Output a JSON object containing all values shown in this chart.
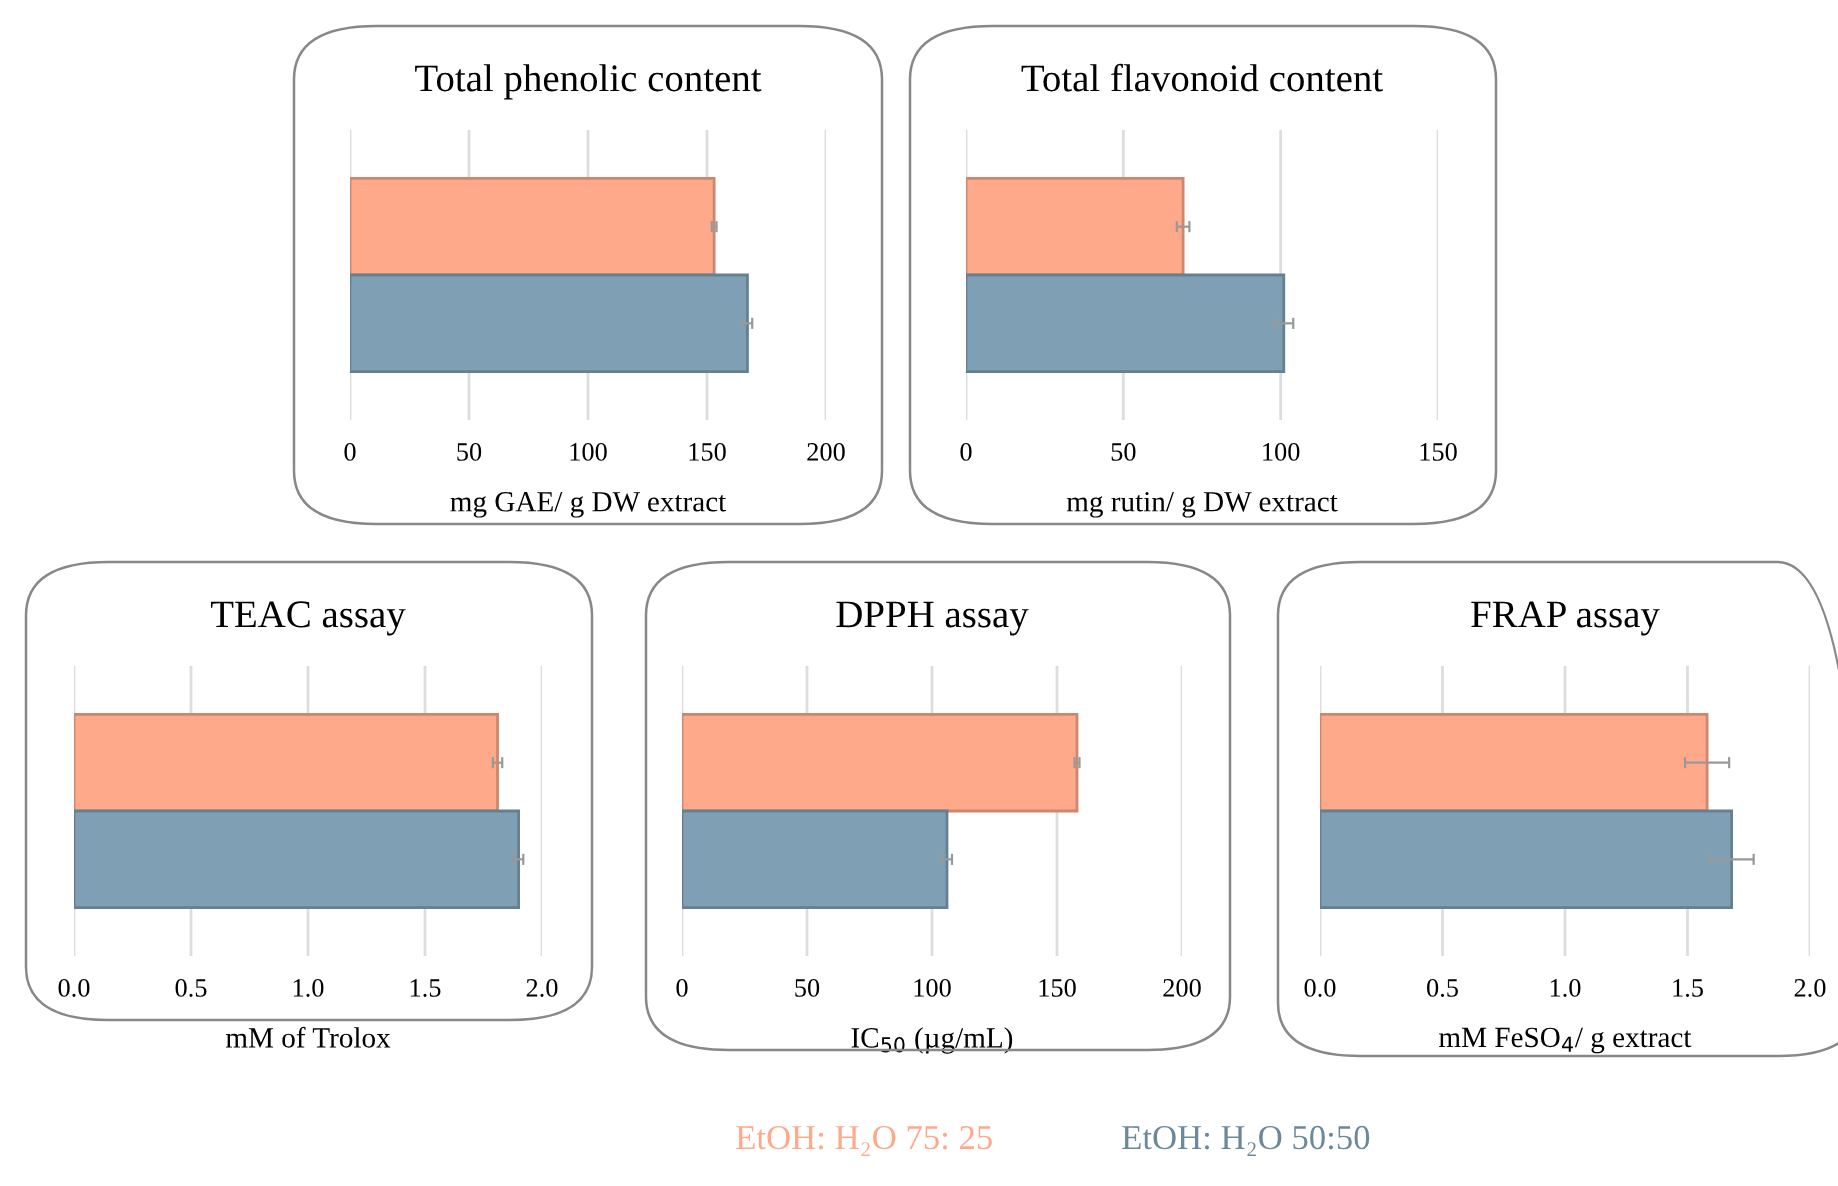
{
  "chart_data": [
    {
      "type": "bar",
      "orientation": "horizontal",
      "title": "Total phenolic content",
      "xlabel": "mg GAE/ g DW extract",
      "categories": [
        null
      ],
      "xlim": [
        0,
        200
      ],
      "xticks": [
        0,
        50,
        100,
        150,
        200
      ],
      "grid": "x",
      "legend": "bottom",
      "series": [
        {
          "name": "EtOH: H₂O 75: 25",
          "color": "#ffa98b",
          "values": [
            153
          ],
          "errors": [
            1
          ]
        },
        {
          "name": "EtOH: H₂O 50:50",
          "color": "#7fa0b4",
          "values": [
            167
          ],
          "errors": [
            2
          ]
        }
      ]
    },
    {
      "type": "bar",
      "orientation": "horizontal",
      "title": "Total flavonoid content",
      "xlabel": "mg rutin/ g DW extract",
      "categories": [
        null
      ],
      "xlim": [
        0,
        150
      ],
      "xticks": [
        0,
        50,
        100,
        150
      ],
      "grid": "x",
      "series": [
        {
          "color": "#ffa98b",
          "values": [
            69
          ],
          "errors": [
            2
          ]
        },
        {
          "color": "#7fa0b4",
          "values": [
            101
          ],
          "errors": [
            3
          ]
        }
      ]
    },
    {
      "type": "bar",
      "orientation": "horizontal",
      "title": "TEAC assay",
      "xlabel": "mM of Trolox",
      "categories": [
        null
      ],
      "xlim": [
        0,
        2
      ],
      "xticks": [
        {
          "value": 0,
          "label": "0.0"
        },
        0.5,
        {
          "value": 1,
          "label": "1.0"
        },
        1.5,
        {
          "value": 2,
          "label": "2.0"
        }
      ],
      "grid": "x",
      "series": [
        {
          "color": "#ffa98b",
          "values": [
            1.81
          ],
          "errors": [
            0.02
          ]
        },
        {
          "color": "#7fa0b4",
          "values": [
            1.9
          ],
          "errors": [
            0.02
          ]
        }
      ]
    },
    {
      "type": "bar",
      "orientation": "horizontal",
      "title": "DPPH assay",
      "xlabel": "IC$_{50}$ (µg/mL)",
      "categories": [
        null
      ],
      "xlim": [
        0,
        200
      ],
      "xticks": [
        0,
        50,
        100,
        150,
        200
      ],
      "grid": "x",
      "series": [
        {
          "color": "#ffa98b",
          "values": [
            158
          ],
          "errors": [
            1
          ]
        },
        {
          "color": "#7fa0b4",
          "values": [
            106
          ],
          "errors": [
            2
          ]
        }
      ]
    },
    {
      "type": "bar",
      "orientation": "horizontal",
      "title": "FRAP assay",
      "xlabel": "mM FeSO$_{4}$/ g extract",
      "categories": [
        null
      ],
      "xlim": [
        0,
        2
      ],
      "xticks": [
        {
          "value": 0,
          "label": "0.0"
        },
        0.5,
        {
          "value": 1,
          "label": "1.0"
        },
        1.5,
        {
          "value": 2,
          "label": "2.0"
        }
      ],
      "grid": "x",
      "series": [
        {
          "color": "#ffa98b",
          "values": [
            1.58
          ],
          "errors": [
            0.09
          ]
        },
        {
          "color": "#7fa0b4",
          "values": [
            1.68
          ],
          "errors": [
            0.09
          ]
        }
      ]
    }
  ]
}
